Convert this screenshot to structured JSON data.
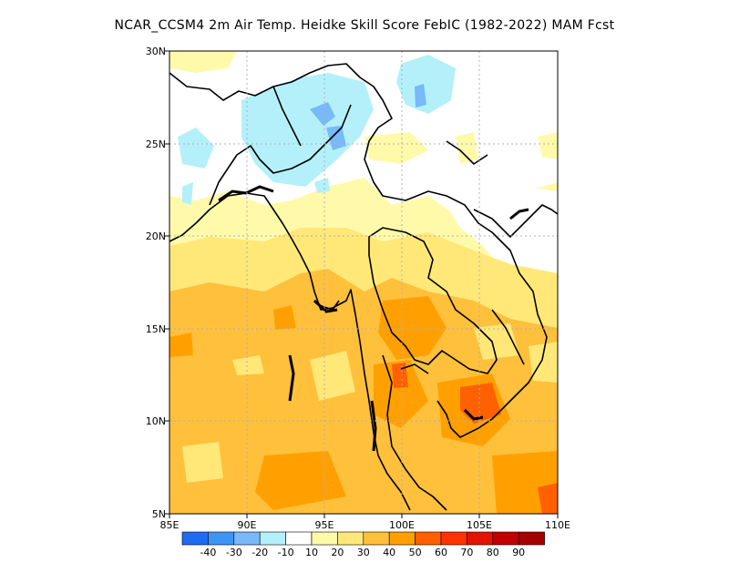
{
  "title": "NCAR_CCSM4  2m Air Temp. Heidke Skill Score FebIC (1982-2022) MAM Fcst",
  "map": {
    "lon_range": [
      85,
      110
    ],
    "lat_range": [
      5,
      30
    ],
    "lon_ticks": [
      "85E",
      "90E",
      "95E",
      "100E",
      "105E",
      "110E"
    ],
    "lat_ticks": [
      "5N",
      "10N",
      "15N",
      "20N",
      "25N",
      "30N"
    ],
    "gridlines": "dashed"
  },
  "colorbar": {
    "labels": [
      "-40",
      "-30",
      "-20",
      "-10",
      "10",
      "20",
      "30",
      "40",
      "50",
      "60",
      "70",
      "80",
      "90"
    ],
    "colors": [
      "#1e6cf0",
      "#3c96f5",
      "#78b9fa",
      "#b4f0fa",
      "#ffffff",
      "#fffaaa",
      "#ffe878",
      "#ffc03c",
      "#ffa000",
      "#ff6000",
      "#ff3200",
      "#e11400",
      "#c00000",
      "#a50000"
    ]
  }
}
